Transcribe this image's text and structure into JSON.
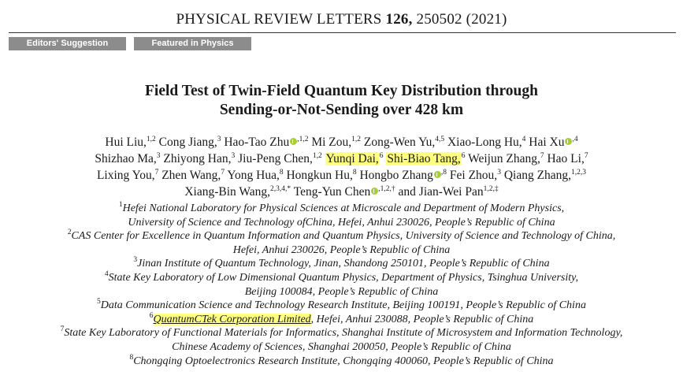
{
  "journal": {
    "name": "PHYSICAL REVIEW LETTERS",
    "volume": "126,",
    "rest": "250502 (2021)"
  },
  "tags": [
    "Editors' Suggestion",
    "Featured in Physics"
  ],
  "title": {
    "line1": "Field Test of Twin-Field Quantum Key Distribution through",
    "line2": "Sending-or-Not-Sending over 428 km"
  },
  "authors": [
    {
      "name": "Hui Liu,",
      "sup": "1,2",
      "orcid": false,
      "hl": false
    },
    {
      "name": "Cong Jiang,",
      "sup": "3",
      "orcid": false,
      "hl": false
    },
    {
      "name": "Hao-Tao Zhu",
      "sup": ",1,2",
      "orcid": true,
      "hl": false
    },
    {
      "name": "Mi Zou,",
      "sup": "1,2",
      "orcid": false,
      "hl": false
    },
    {
      "name": "Zong-Wen Yu,",
      "sup": "4,5",
      "orcid": false,
      "hl": false
    },
    {
      "name": "Xiao-Long Hu,",
      "sup": "4",
      "orcid": false,
      "hl": false
    },
    {
      "name": "Hai Xu",
      "sup": ",4",
      "orcid": true,
      "hl": false
    },
    {
      "name": "Shizhao Ma,",
      "sup": "3",
      "orcid": false,
      "hl": false
    },
    {
      "name": "Zhiyong Han,",
      "sup": "3",
      "orcid": false,
      "hl": false
    },
    {
      "name": "Jiu-Peng Chen,",
      "sup": "1,2",
      "orcid": false,
      "hl": false
    },
    {
      "name": "Yunqi Dai,",
      "sup": "6",
      "orcid": false,
      "hl": true
    },
    {
      "name": "Shi-Biao Tang,",
      "sup": "6",
      "orcid": false,
      "hl": true
    },
    {
      "name": "Weijun Zhang,",
      "sup": "7",
      "orcid": false,
      "hl": false
    },
    {
      "name": "Hao Li,",
      "sup": "7",
      "orcid": false,
      "hl": false
    },
    {
      "name": "Lixing You,",
      "sup": "7",
      "orcid": false,
      "hl": false
    },
    {
      "name": "Zhen Wang,",
      "sup": "7",
      "orcid": false,
      "hl": false
    },
    {
      "name": "Yong Hua,",
      "sup": "8",
      "orcid": false,
      "hl": false
    },
    {
      "name": "Hongkun Hu,",
      "sup": "8",
      "orcid": false,
      "hl": false
    },
    {
      "name": "Hongbo Zhang",
      "sup": ",8",
      "orcid": true,
      "hl": false
    },
    {
      "name": "Fei Zhou,",
      "sup": "3",
      "orcid": false,
      "hl": false
    },
    {
      "name": "Qiang Zhang,",
      "sup": "1,2,3",
      "orcid": false,
      "hl": false
    },
    {
      "name": "Xiang-Bin Wang,",
      "sup": "2,3,4,*",
      "orcid": false,
      "hl": false
    },
    {
      "name": "Teng-Yun Chen",
      "sup": ",1,2,†",
      "orcid": true,
      "hl": false
    },
    {
      "name": "and Jian-Wei Pan",
      "sup": "1,2,‡",
      "orcid": false,
      "hl": false
    }
  ],
  "affiliations": [
    {
      "sup": "1",
      "text": "Hefei National Laboratory for Physical Sciences at Microscale and Department of Modern Physics,"
    },
    {
      "sup": "",
      "text": "University of Science and Technology ofChina, Hefei, Anhui 230026, People’s Republic of China"
    },
    {
      "sup": "2",
      "text": "CAS Center for Excellence in Quantum Information and Quantum Physics, University of Science and Technology of China,"
    },
    {
      "sup": "",
      "text": "Hefei, Anhui 230026, People’s Republic of China"
    },
    {
      "sup": "3",
      "text": "Jinan Institute of Quantum Technology, Jinan, Shandong 250101, People’s Republic of China"
    },
    {
      "sup": "4",
      "text": "State Key Laboratory of Low Dimensional Quantum Physics, Department of Physics, Tsinghua University,"
    },
    {
      "sup": "",
      "text": "Beijing 100084, People’s Republic of China"
    },
    {
      "sup": "5",
      "text": "Data Communication Science and Technology Research Institute, Beijing 100191, People’s Republic of China"
    },
    {
      "sup": "6",
      "hl": "QuantumCTek Corporation Limited",
      "text": ", Hefei, Anhui 230088, People’s Republic of China"
    },
    {
      "sup": "7",
      "text": "State Key Laboratory of Functional Materials for Informatics, Shanghai Institute of Microsystem and Information Technology,"
    },
    {
      "sup": "",
      "text": "Chinese Academy of Sciences, Shanghai 200050, People’s Republic of China"
    },
    {
      "sup": "8",
      "text": "Chongqing Optoelectronics Research Institute, Chongqing 400060, People’s Republic of China"
    }
  ]
}
